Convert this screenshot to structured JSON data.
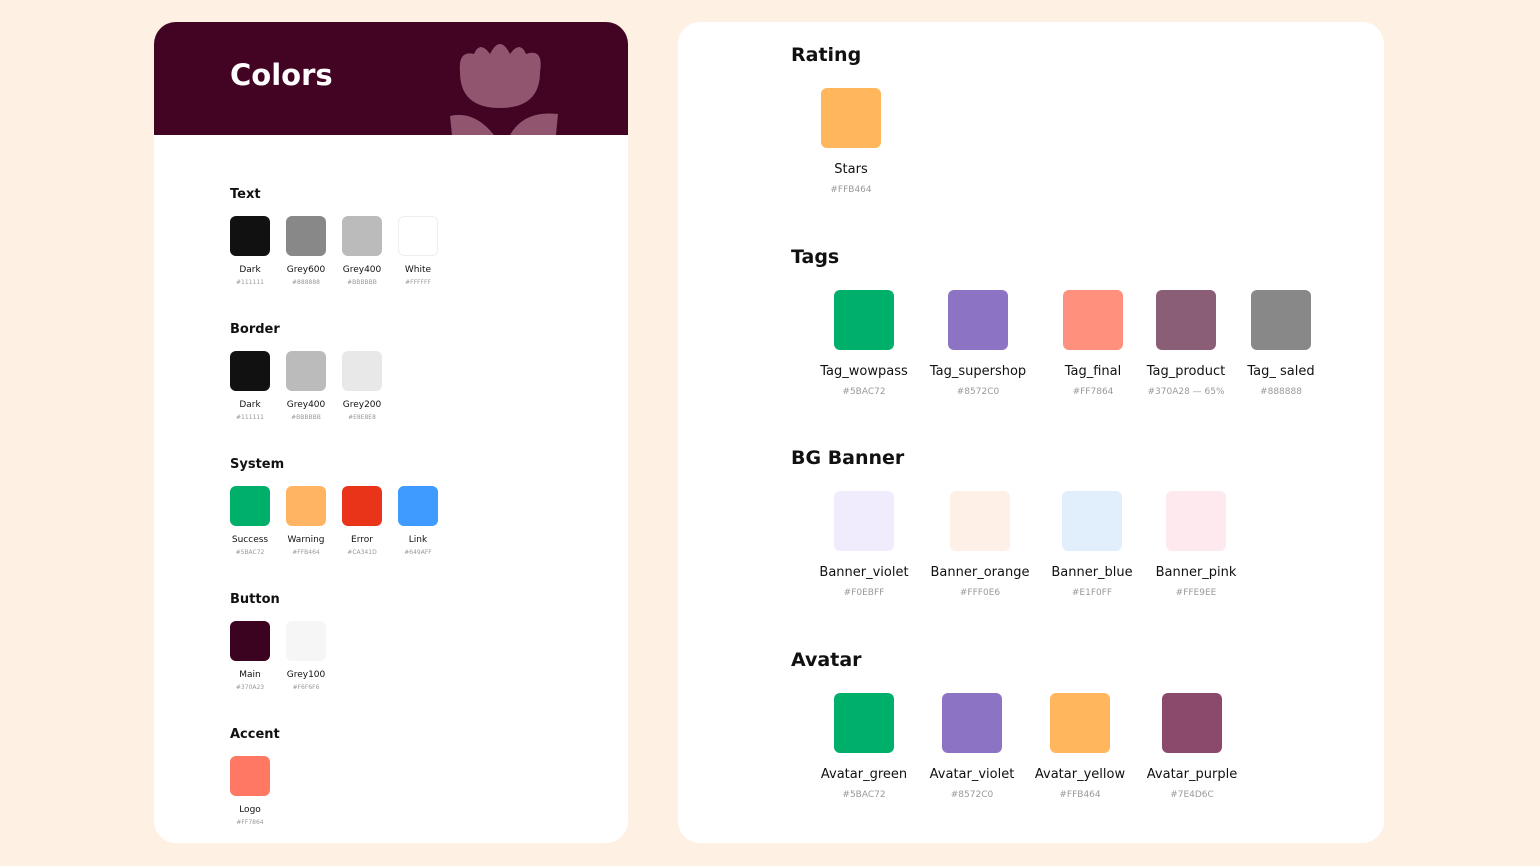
{
  "left": {
    "title": "Colors",
    "sections": [
      {
        "title": "Text",
        "swatches": [
          {
            "name": "Dark",
            "hex": "#111111",
            "color": "#111111"
          },
          {
            "name": "Grey600",
            "hex": "#888888",
            "color": "#888888"
          },
          {
            "name": "Grey400",
            "hex": "#BBBBBB",
            "color": "#BBBBBB"
          },
          {
            "name": "White",
            "hex": "#FFFFFF",
            "color": "#FFFFFF"
          }
        ]
      },
      {
        "title": "Border",
        "swatches": [
          {
            "name": "Dark",
            "hex": "#111111",
            "color": "#111111"
          },
          {
            "name": "Grey400",
            "hex": "#BBBBBB",
            "color": "#BBBBBB"
          },
          {
            "name": "Grey200",
            "hex": "#E8E8E8",
            "color": "#E8E8E8"
          }
        ]
      },
      {
        "title": "System",
        "swatches": [
          {
            "name": "Success",
            "hex": "#5BAC72",
            "color": "#00B06A"
          },
          {
            "name": "Warning",
            "hex": "#FFB464",
            "color": "#FFB464"
          },
          {
            "name": "Error",
            "hex": "#CA341D",
            "color": "#EA3419"
          },
          {
            "name": "Link",
            "hex": "#649AFF",
            "color": "#3F9BFF"
          }
        ]
      },
      {
        "title": "Button",
        "swatches": [
          {
            "name": "Main",
            "hex": "#370A23",
            "color": "#3C0321"
          },
          {
            "name": "Grey100",
            "hex": "#F6F6F6",
            "color": "#F6F6F6"
          }
        ]
      },
      {
        "title": "Accent",
        "swatches": [
          {
            "name": "Logo",
            "hex": "#FF7864",
            "color": "#FF7864"
          }
        ]
      }
    ]
  },
  "right": {
    "sections": [
      {
        "title": "Rating",
        "swatches": [
          {
            "name": "Stars",
            "hex": "#FFB464",
            "color": "#FFB65C"
          }
        ]
      },
      {
        "title": "Tags",
        "swatches": [
          {
            "name": "Tag_wowpass",
            "hex": "#5BAC72",
            "color": "#00B06A"
          },
          {
            "name": "Tag_supershop",
            "hex": "#8572C0",
            "color": "#8C73C4"
          },
          {
            "name": "Tag_final",
            "hex": "#FF7864",
            "color": "#FF907E"
          },
          {
            "name": "Tag_product",
            "hex": "#370A28 — 65%",
            "color": "#8A5E74"
          },
          {
            "name": "Tag_ saled",
            "hex": "#888888",
            "color": "#888888"
          }
        ]
      },
      {
        "title": "BG Banner",
        "swatches": [
          {
            "name": "Banner_violet",
            "hex": "#F0EBFF",
            "color": "#F1ECFD"
          },
          {
            "name": "Banner_orange",
            "hex": "#FFF0E6",
            "color": "#FEF0E6"
          },
          {
            "name": "Banner_blue",
            "hex": "#E1F0FF",
            "color": "#E1EFFD"
          },
          {
            "name": "Banner_pink",
            "hex": "#FFE9EE",
            "color": "#FDE9EE"
          }
        ]
      },
      {
        "title": "Avatar",
        "swatches": [
          {
            "name": "Avatar_green",
            "hex": "#5BAC72",
            "color": "#00B06A"
          },
          {
            "name": "Avatar_violet",
            "hex": "#8572C0",
            "color": "#8C73C4"
          },
          {
            "name": "Avatar_yellow",
            "hex": "#FFB464",
            "color": "#FFB65C"
          },
          {
            "name": "Avatar_purple",
            "hex": "#7E4D6C",
            "color": "#8B4A6C"
          }
        ]
      }
    ]
  }
}
